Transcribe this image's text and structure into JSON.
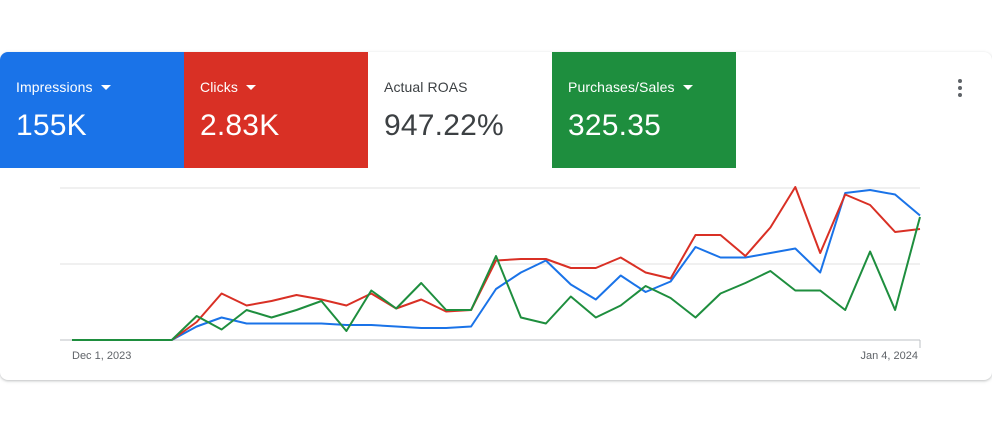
{
  "metrics": [
    {
      "label": "Impressions",
      "value": "155K",
      "color": "#1a73e8",
      "has_dropdown": true,
      "active": true,
      "icon": "caret-down-icon"
    },
    {
      "label": "Clicks",
      "value": "2.83K",
      "color": "#d93025",
      "has_dropdown": true,
      "active": true,
      "icon": "caret-down-icon"
    },
    {
      "label": "Actual ROAS",
      "value": "947.22%",
      "color": "#ffffff",
      "has_dropdown": false,
      "active": false
    },
    {
      "label": "Purchases/Sales",
      "value": "325.35",
      "color": "#1e8e3e",
      "has_dropdown": true,
      "active": true,
      "icon": "caret-down-icon"
    }
  ],
  "menu": {
    "icon": "more-vert-icon"
  },
  "chart_data": {
    "type": "line",
    "x_start_label": "Dec 1, 2023",
    "x_end_label": "Jan 4, 2024",
    "grid": true,
    "y_axis_labels_visible": false,
    "y_range": [
      0,
      1
    ],
    "series": [
      {
        "color": "#1a73e8",
        "values": [
          0,
          0,
          0,
          0,
          0,
          0.09,
          0.15,
          0.11,
          0.11,
          0.11,
          0.11,
          0.1,
          0.1,
          0.09,
          0.08,
          0.08,
          0.09,
          0.34,
          0.45,
          0.53,
          0.37,
          0.27,
          0.43,
          0.32,
          0.39,
          0.62,
          0.55,
          0.55,
          0.58,
          0.61,
          0.45,
          0.98,
          1.0,
          0.97,
          0.83
        ]
      },
      {
        "color": "#d93025",
        "values": [
          0,
          0,
          0,
          0,
          0,
          0.12,
          0.31,
          0.23,
          0.26,
          0.3,
          0.27,
          0.23,
          0.31,
          0.21,
          0.27,
          0.19,
          0.2,
          0.53,
          0.54,
          0.54,
          0.48,
          0.48,
          0.55,
          0.45,
          0.41,
          0.7,
          0.7,
          0.56,
          0.75,
          1.02,
          0.58,
          0.97,
          0.9,
          0.72,
          0.74
        ]
      },
      {
        "color": "#1e8e3e",
        "values": [
          0,
          0,
          0,
          0,
          0,
          0.16,
          0.07,
          0.2,
          0.15,
          0.2,
          0.26,
          0.06,
          0.33,
          0.21,
          0.38,
          0.2,
          0.2,
          0.56,
          0.15,
          0.11,
          0.29,
          0.15,
          0.23,
          0.36,
          0.28,
          0.15,
          0.31,
          0.38,
          0.46,
          0.33,
          0.33,
          0.2,
          0.59,
          0.2,
          0.82
        ]
      }
    ]
  }
}
